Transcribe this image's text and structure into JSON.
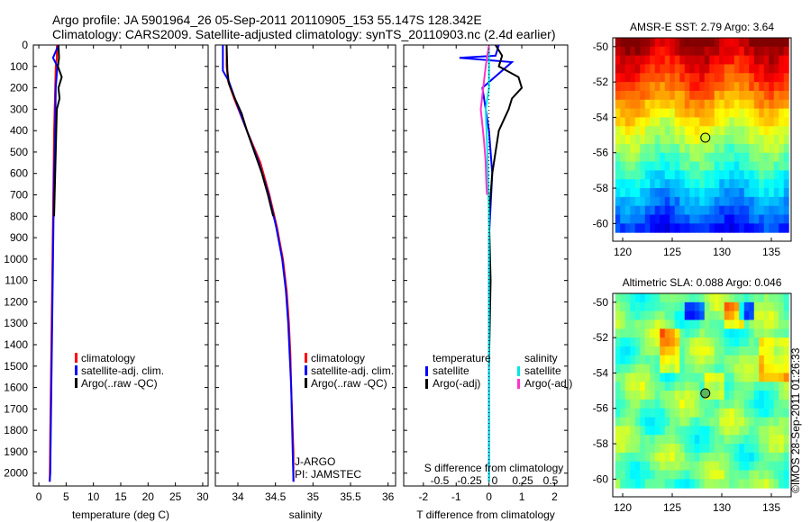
{
  "header": {
    "line1": "Argo profile: JA 5901964_26 05-Sep-2011 20110905_153 55.147S 128.342E",
    "line2": "Climatology: CARS2009. Satellite-adjusted climatology: synTS_20110903.nc (2.4d earlier)"
  },
  "side_label": "©IMOS 28-Sep-2011 01:26:33",
  "colors": {
    "climatology": "#ff0000",
    "satellite": "#0000ff",
    "argo": "#000000",
    "s_satellite": "#00e5e5",
    "s_argo": "#ff33cc"
  },
  "chart_data": [
    {
      "type": "line",
      "id": "temperature",
      "xlabel": "temperature (deg C)",
      "ylabel": "",
      "xlim": [
        -1,
        31
      ],
      "ylim": [
        2060,
        0
      ],
      "xticks": [
        0,
        5,
        10,
        15,
        20,
        25,
        30
      ],
      "yticks": [
        0,
        100,
        200,
        300,
        400,
        500,
        600,
        700,
        800,
        900,
        1000,
        1100,
        1200,
        1300,
        1400,
        1500,
        1600,
        1700,
        1800,
        1900,
        2000
      ],
      "legend": [
        "climatology",
        "satellite-adj. clim.",
        "Argo(..raw -QC)"
      ],
      "series": [
        {
          "name": "climatology",
          "color": "#ff0000",
          "x": [
            3.3,
            3.3,
            3.1,
            3.0,
            2.8,
            2.7,
            2.6,
            2.5,
            2.4,
            2.3,
            2.2,
            2.1,
            2.0
          ],
          "y": [
            0,
            60,
            100,
            200,
            400,
            600,
            800,
            1000,
            1200,
            1400,
            1600,
            1800,
            2040
          ]
        },
        {
          "name": "satellite-adj. clim.",
          "color": "#0000ff",
          "x": [
            3.6,
            2.6,
            3.4,
            3.1,
            3.0,
            2.8,
            2.7,
            2.6,
            2.5,
            2.4,
            2.3,
            2.2,
            2.1,
            2.0
          ],
          "y": [
            0,
            60,
            100,
            200,
            400,
            600,
            800,
            1000,
            1200,
            1400,
            1600,
            1800,
            2000,
            2040
          ]
        },
        {
          "name": "Argo(..raw -QC)",
          "color": "#000000",
          "x": [
            3.6,
            3.7,
            3.5,
            4.2,
            3.6,
            3.8,
            3.3,
            3.2,
            3.1,
            3.0,
            2.9,
            2.8
          ],
          "y": [
            0,
            60,
            100,
            150,
            200,
            250,
            300,
            400,
            500,
            600,
            700,
            800
          ]
        }
      ]
    },
    {
      "type": "line",
      "id": "salinity",
      "xlabel": "salinity",
      "xlim": [
        33.7,
        36.1
      ],
      "ylim": [
        2060,
        0
      ],
      "xticks": [
        34,
        34.5,
        35,
        35.5,
        36
      ],
      "legend": [
        "climatology",
        "satellite-adj. clim.",
        "Argo(..raw -QC)"
      ],
      "annotation": [
        "J-ARGO",
        "PI: JAMSTEC"
      ],
      "series": [
        {
          "name": "climatology",
          "color": "#ff0000",
          "x": [
            33.85,
            33.85,
            33.87,
            33.95,
            34.12,
            34.3,
            34.42,
            34.52,
            34.6,
            34.65,
            34.68,
            34.7,
            34.71,
            34.72,
            34.73,
            34.74,
            34.74,
            34.74
          ],
          "y": [
            0,
            100,
            170,
            250,
            400,
            550,
            700,
            850,
            1000,
            1150,
            1300,
            1450,
            1600,
            1700,
            1800,
            1900,
            2000,
            2040
          ]
        },
        {
          "name": "satellite-adj. clim.",
          "color": "#0000ff",
          "x": [
            33.8,
            33.8,
            33.88,
            33.96,
            34.12,
            34.28,
            34.41,
            34.51,
            34.59,
            34.64,
            34.67,
            34.69,
            34.71,
            34.72,
            34.73,
            34.74
          ],
          "y": [
            0,
            120,
            170,
            250,
            400,
            550,
            700,
            850,
            1000,
            1150,
            1300,
            1450,
            1600,
            1750,
            1900,
            2040
          ]
        },
        {
          "name": "Argo(..raw -QC)",
          "color": "#000000",
          "x": [
            33.85,
            33.86,
            33.88,
            33.96,
            34.05,
            34.12,
            34.22,
            34.32,
            34.4,
            34.47
          ],
          "y": [
            0,
            120,
            180,
            250,
            320,
            400,
            500,
            600,
            700,
            800
          ]
        }
      ]
    },
    {
      "type": "line",
      "id": "difference",
      "xlabel": "T difference from climatology",
      "xlabel_top": "S difference from climatology",
      "xlim": [
        -2.6,
        2.4
      ],
      "ylim": [
        2060,
        0
      ],
      "xticks": [
        -2,
        -1,
        0,
        1,
        2
      ],
      "xticks_top": [
        "-0.5",
        "-0.25",
        "0",
        "0.25",
        "0.5"
      ],
      "legend_left": [
        "temperature",
        "satellite",
        "Argo(-adj)"
      ],
      "legend_right": [
        "salinity",
        "satellite",
        "Argo(-adj)"
      ],
      "series": [
        {
          "name": "satellite",
          "color": "#0000ff",
          "x": [
            0.3,
            0.2,
            -0.9,
            0.7,
            -0.2,
            0.0,
            0.1,
            0.0,
            0.0,
            0.0,
            0.0
          ],
          "y": [
            0,
            50,
            60,
            80,
            200,
            400,
            600,
            900,
            1200,
            1600,
            2040
          ]
        },
        {
          "name": "Argo(-adj)",
          "color": "#000000",
          "x": [
            0.2,
            0.4,
            0.3,
            0.9,
            1.0,
            0.7,
            0.6,
            0.3,
            0.2,
            0.1,
            0.0,
            0.05,
            0.0
          ],
          "y": [
            0,
            50,
            100,
            150,
            200,
            250,
            300,
            400,
            500,
            600,
            800,
            1100,
            1500
          ]
        },
        {
          "name": "satellite",
          "color": "#00e5e5",
          "x": [
            0.0,
            0.0,
            -0.1,
            -0.05,
            0.0,
            0.0,
            0.0
          ],
          "y": [
            0,
            200,
            300,
            500,
            800,
            1200,
            2040
          ]
        },
        {
          "name": "Argo(-adj)",
          "color": "#ff33cc",
          "x": [
            0.0,
            -0.1,
            -0.25,
            -0.15,
            -0.1,
            -0.08,
            -0.06
          ],
          "y": [
            0,
            100,
            300,
            450,
            550,
            650,
            700
          ]
        }
      ]
    },
    {
      "type": "heatmap",
      "id": "sst",
      "title": "AMSR-E SST: 2.79 Argo: 3.64",
      "xlim": [
        119,
        137
      ],
      "ylim": [
        -61,
        -49.5
      ],
      "xticks": [
        120,
        125,
        130,
        135
      ],
      "yticks": [
        -50,
        -52,
        -54,
        -56,
        -58,
        -60
      ],
      "marker": {
        "lon": 128.342,
        "lat": -55.147
      }
    },
    {
      "type": "heatmap",
      "id": "sla",
      "title": "Altimetric SLA: 0.088 Argo: 0.046",
      "xlim": [
        119,
        137
      ],
      "ylim": [
        -61,
        -49.5
      ],
      "xticks": [
        120,
        125,
        130,
        135
      ],
      "yticks": [
        -50,
        -52,
        -54,
        -56,
        -58,
        -60
      ],
      "marker": {
        "lon": 128.342,
        "lat": -55.147
      }
    }
  ]
}
